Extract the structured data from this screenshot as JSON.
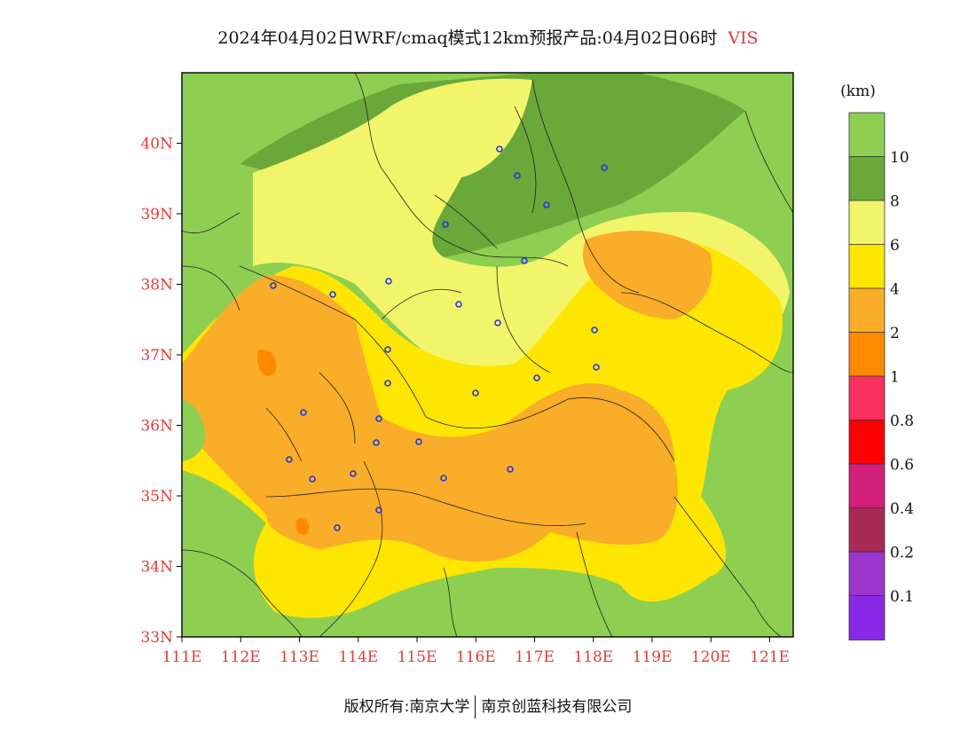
{
  "title": {
    "text": "2024年04月02日WRF/cmaq模式12km预报产品:04月02日06时",
    "variable": "VIS"
  },
  "map": {
    "lat_ticks": [
      "40N",
      "39N",
      "38N",
      "37N",
      "36N",
      "35N",
      "34N",
      "33N"
    ],
    "lon_ticks": [
      "111E",
      "112E",
      "113E",
      "114E",
      "115E",
      "116E",
      "117E",
      "118E",
      "119E",
      "120E",
      "121E"
    ],
    "lat_range": [
      33,
      41
    ],
    "lon_range": [
      111,
      121.4
    ]
  },
  "legend": {
    "unit": "(km)",
    "levels": [
      {
        "label": "10",
        "color": "#8ecf52"
      },
      {
        "label": "8",
        "color": "#6aa83a"
      },
      {
        "label": "6",
        "color": "#f2f56a"
      },
      {
        "label": "4",
        "color": "#ffe600"
      },
      {
        "label": "2",
        "color": "#f9ad28"
      },
      {
        "label": "1",
        "color": "#ff8a00"
      },
      {
        "label": "0.8",
        "color": "#f8315f"
      },
      {
        "label": "0.6",
        "color": "#ff0000"
      },
      {
        "label": "0.4",
        "color": "#d0207a"
      },
      {
        "label": "0.2",
        "color": "#a82a55"
      },
      {
        "label": "0.1",
        "color": "#9b35cc"
      },
      {
        "label": "",
        "color": "#8a28e8"
      }
    ]
  },
  "footer": {
    "copyright": "版权所有:南京大学",
    "company": "南京创蓝科技有限公司"
  }
}
